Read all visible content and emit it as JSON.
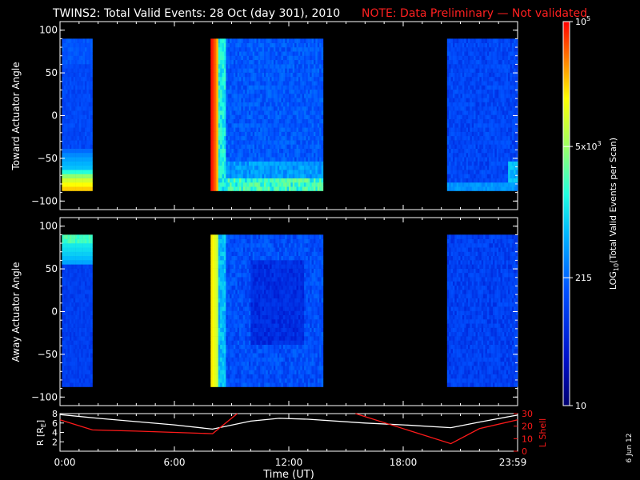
{
  "title": {
    "main": "TWINS2: Total Valid Events: 28 Oct (day 301), 2010",
    "note": "NOTE: Data Preliminary — Not validated",
    "note_color": "#ff2020"
  },
  "panels": [
    {
      "id": "toward",
      "ylabel": "Toward Actuator Angle",
      "yticks": [
        "100",
        "50",
        "0",
        "−50",
        "−100"
      ],
      "ylim": [
        -110,
        110
      ]
    },
    {
      "id": "away",
      "ylabel": "Away Actuator Angle",
      "yticks": [
        "100",
        "50",
        "0",
        "−50",
        "−100"
      ],
      "ylim": [
        -110,
        110
      ]
    }
  ],
  "colorbar": {
    "label": "LOG10(Total Valid Events per Scan)",
    "label_main": "LOG",
    "label_sub": "10",
    "label_rest": "(Total Valid Events per Scan)",
    "ticks": [
      {
        "base": "10",
        "exp": "5",
        "value": 100000
      },
      {
        "base": "5x10",
        "exp": "3",
        "value": 5000
      },
      {
        "base": "215",
        "exp": "",
        "value": 215
      },
      {
        "base": "10",
        "exp": "",
        "value": 10
      }
    ],
    "range": [
      10,
      100000
    ],
    "scale": "log"
  },
  "orbit_panel": {
    "ylabel_left": "R [R",
    "ylabel_left_sub": "E",
    "ylabel_left_end": "]",
    "ylabel_right": "L Shell",
    "right_color": "#ff1a1a",
    "left_ticks": [
      "8",
      "6",
      "4",
      "2"
    ],
    "right_ticks": [
      "30",
      "20",
      "10",
      "0"
    ],
    "left_lim": [
      0,
      8
    ],
    "right_lim": [
      0,
      30
    ]
  },
  "xaxis": {
    "label": "Time (UT)",
    "ticks": [
      "0:00",
      "6:00",
      "12:00",
      "18:00",
      "23:59"
    ],
    "range_hours": [
      0,
      24
    ]
  },
  "date_stamp": "6 Jun 12",
  "chart_data": {
    "type": "heatmap",
    "title": "TWINS2: Total Valid Events: 28 Oct (day 301), 2010",
    "xlabel": "Time (UT)",
    "x_unit": "hours UT",
    "color_scale": "log10",
    "color_range": [
      10,
      100000
    ],
    "data_intervals_hours": [
      [
        0.1,
        1.7
      ],
      [
        7.9,
        13.8
      ],
      [
        20.3,
        24.0
      ]
    ],
    "panels": [
      {
        "name": "Toward Actuator Angle",
        "ylim": [
          -110,
          110
        ],
        "angle_range": [
          -88,
          90
        ],
        "approx_counts": [
          {
            "interval": [
              0.1,
              1.7
            ],
            "angle_range": [
              -88,
              -70
            ],
            "level": "high (~1e4–1e5)"
          },
          {
            "interval": [
              0.1,
              1.7
            ],
            "angle_range": [
              -70,
              90
            ],
            "level": "low (~100–300)"
          },
          {
            "interval": [
              7.9,
              8.4
            ],
            "angle_range": [
              -88,
              90
            ],
            "level": "very high (~1e5)"
          },
          {
            "interval": [
              8.4,
              13.8
            ],
            "angle_range": [
              -88,
              -70
            ],
            "level": "high near bottom (~1e4)"
          },
          {
            "interval": [
              8.4,
              13.8
            ],
            "angle_range": [
              -70,
              90
            ],
            "level": "low (~100–500)"
          },
          {
            "interval": [
              20.3,
              24.0
            ],
            "angle_range": [
              -88,
              90
            ],
            "level": "low (~50–300)"
          }
        ]
      },
      {
        "name": "Away Actuator Angle",
        "ylim": [
          -110,
          110
        ],
        "angle_range": [
          -88,
          90
        ],
        "approx_counts": [
          {
            "interval": [
              0.1,
              1.7
            ],
            "angle_range": [
              60,
              90
            ],
            "level": "medium (~1e3)"
          },
          {
            "interval": [
              0.1,
              1.7
            ],
            "angle_range": [
              -88,
              60
            ],
            "level": "low (~100)"
          },
          {
            "interval": [
              7.9,
              8.4
            ],
            "angle_range": [
              -88,
              90
            ],
            "level": "high (~2e4)"
          },
          {
            "interval": [
              8.4,
              13.8
            ],
            "angle_range": [
              -88,
              90
            ],
            "level": "low (~50–300)"
          },
          {
            "interval": [
              20.3,
              24.0
            ],
            "angle_range": [
              -88,
              90
            ],
            "level": "low (~50–200)"
          }
        ]
      }
    ],
    "orbit": {
      "series": [
        {
          "name": "R [RE]",
          "color": "#ffffff",
          "axis": "left",
          "x": [
            0,
            2,
            4,
            6,
            8,
            10,
            11.5,
            13,
            16,
            18,
            20.5,
            22,
            24
          ],
          "y": [
            7.8,
            7.0,
            6.3,
            5.6,
            4.7,
            6.4,
            7.0,
            6.8,
            6.0,
            5.6,
            5.0,
            6.2,
            7.7
          ]
        },
        {
          "name": "L Shell",
          "color": "#ff1a1a",
          "axis": "right",
          "segments": [
            {
              "x": [
                0,
                1.7,
                4,
                8,
                9.3
              ],
              "y": [
                25,
                17,
                16,
                14,
                30
              ]
            },
            {
              "x": [
                15.5,
                20.5,
                22,
                24
              ],
              "y": [
                30,
                6,
                18,
                25
              ]
            }
          ]
        }
      ]
    }
  }
}
